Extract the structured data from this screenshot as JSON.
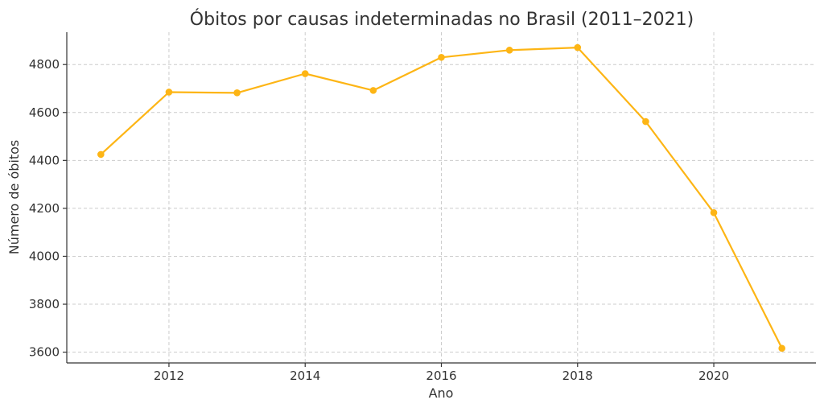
{
  "chart_data": {
    "type": "line",
    "title": "Óbitos por causas indeterminadas no Brasil (2011–2021)",
    "xlabel": "Ano",
    "ylabel": "Número de óbitos",
    "x": [
      2011,
      2012,
      2013,
      2014,
      2015,
      2016,
      2017,
      2018,
      2019,
      2020,
      2021
    ],
    "series": [
      {
        "values": [
          4425,
          4685,
          4682,
          4762,
          4692,
          4830,
          4860,
          4871,
          4562,
          4182,
          3616
        ],
        "color": "#FDB515"
      }
    ],
    "xlim": [
      2010.5,
      2021.5
    ],
    "ylim": [
      3555,
      4935
    ],
    "xticks": [
      2012,
      2014,
      2016,
      2018,
      2020
    ],
    "yticks": [
      3600,
      3800,
      4000,
      4200,
      4400,
      4600,
      4800
    ],
    "grid": true,
    "legend": "none"
  }
}
